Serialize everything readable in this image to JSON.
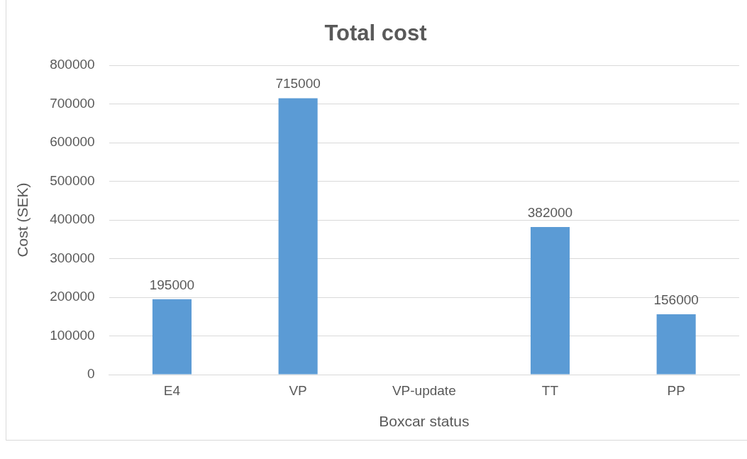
{
  "chart_data": {
    "type": "bar",
    "title": "Total cost",
    "xlabel": "Boxcar status",
    "ylabel": "Cost (SEK)",
    "categories": [
      "E4",
      "VP",
      "VP-update",
      "TT",
      "PP"
    ],
    "values": [
      195000,
      715000,
      null,
      382000,
      156000
    ],
    "color": "#5b9bd5",
    "ylim": [
      0,
      800000
    ],
    "yticks": [
      0,
      100000,
      200000,
      300000,
      400000,
      500000,
      600000,
      700000,
      800000
    ],
    "grid": "y",
    "data_labels": true,
    "legend": false
  }
}
